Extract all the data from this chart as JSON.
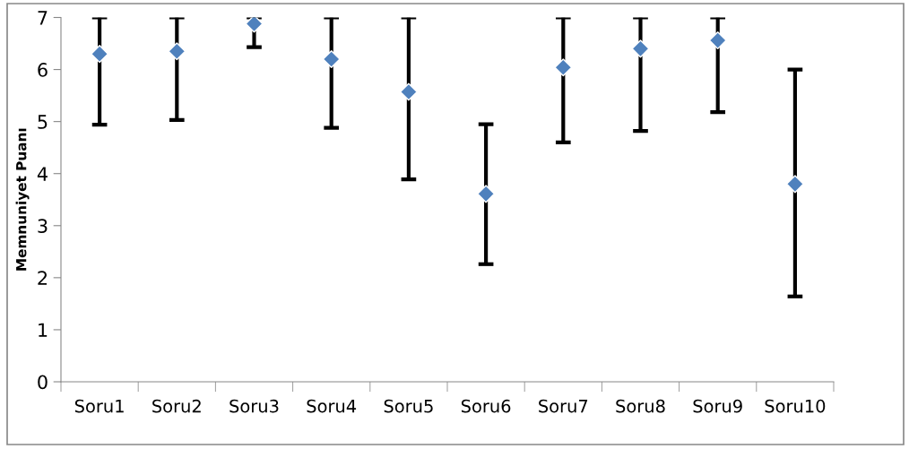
{
  "chart_data": {
    "type": "scatter",
    "ylabel": "Memnuniyet Puanı",
    "categories": [
      "Soru1",
      "Soru2",
      "Soru3",
      "Soru4",
      "Soru5",
      "Soru6",
      "Soru7",
      "Soru8",
      "Soru9",
      "Soru10"
    ],
    "series": [
      {
        "color": "#4f81bd",
        "values": [
          6.3,
          6.35,
          6.88,
          6.2,
          5.57,
          3.61,
          6.04,
          6.4,
          6.56,
          3.8
        ],
        "errors": [
          [
            4.94,
            7
          ],
          [
            5.03,
            7
          ],
          [
            6.43,
            7
          ],
          [
            4.88,
            7
          ],
          [
            3.89,
            7
          ],
          [
            2.26,
            4.95
          ],
          [
            4.6,
            7
          ],
          [
            4.82,
            7
          ],
          [
            5.18,
            7
          ],
          [
            1.64,
            6.0
          ]
        ]
      }
    ],
    "ylim": [
      0,
      7
    ],
    "yticks": [
      0,
      1,
      2,
      3,
      4,
      5,
      6,
      7
    ],
    "marker": "diamond",
    "grid": false,
    "legend": false
  }
}
